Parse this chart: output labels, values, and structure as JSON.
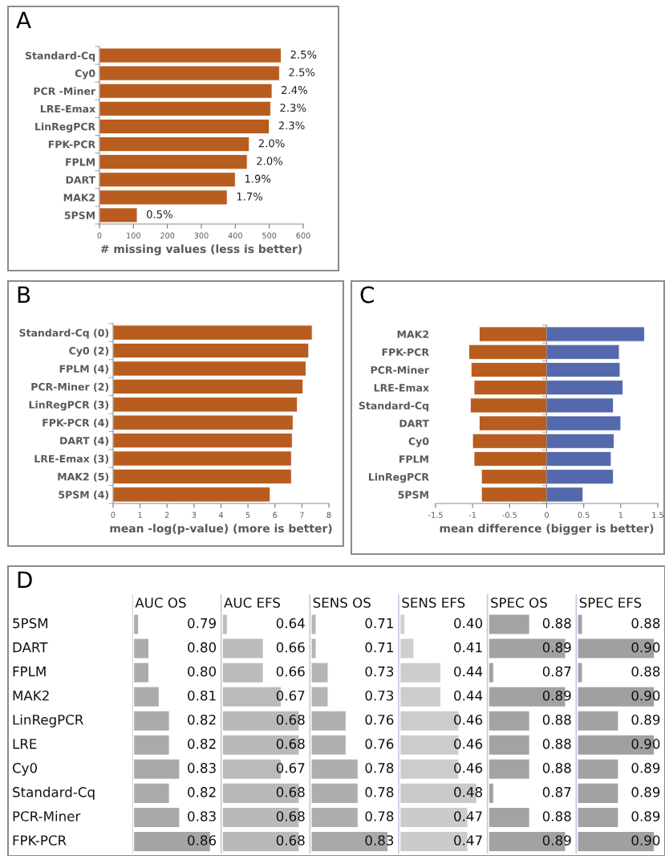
{
  "chart_data": [
    {
      "type": "bar",
      "title": "A",
      "orientation": "horizontal",
      "xlabel": "# missing values (less is better)",
      "categories": [
        "Standard-Cq",
        "Cy0",
        "PCR -Miner",
        "LRE-Emax",
        "LinRegPCR",
        "FPK-PCR",
        "FPLM",
        "DART",
        "MAK2",
        "5PSM"
      ],
      "values": [
        535,
        530,
        508,
        504,
        500,
        441,
        435,
        400,
        376,
        111
      ],
      "color": "#b85c20",
      "annotations": [
        {
          "text": "2.5%",
          "x": 535,
          "y": "Standard-Cq"
        },
        {
          "text": "2.5%",
          "x": 530,
          "y": "Cy0"
        },
        {
          "text": "2.4%",
          "x": 508,
          "y": "PCR -Miner"
        },
        {
          "text": "2.3%",
          "x": 504,
          "y": "LRE-Emax"
        },
        {
          "text": "2.3%",
          "x": 500,
          "y": "LinRegPCR"
        },
        {
          "text": "2.0%",
          "x": 441,
          "y": "FPK-PCR"
        },
        {
          "text": "2.0%",
          "x": 435,
          "y": "FPLM"
        },
        {
          "text": "1.9%",
          "x": 400,
          "y": "DART"
        },
        {
          "text": "1.7%",
          "x": 376,
          "y": "MAK2"
        },
        {
          "text": "0.5%",
          "x": 111,
          "y": "5PSM"
        }
      ],
      "xlim": [
        0,
        600
      ],
      "xticks": [
        0,
        100,
        200,
        300,
        400,
        500,
        600
      ]
    },
    {
      "type": "bar",
      "title": "B",
      "orientation": "horizontal",
      "xlabel": "mean -log(p-value) (more is better)",
      "categories": [
        "Standard-Cq (0)",
        "Cy0 (2)",
        "FPLM (4)",
        "PCR-Miner (2)",
        "LinRegPCR (3)",
        "FPK-PCR (4)",
        "DART (4)",
        "LRE-Emax (3)",
        "MAK2 (5)",
        "5PSM (4)"
      ],
      "values": [
        7.38,
        7.25,
        7.15,
        7.04,
        6.83,
        6.67,
        6.64,
        6.61,
        6.61,
        5.82
      ],
      "color": "#b85c20",
      "xlim": [
        0,
        8
      ],
      "xticks": [
        0,
        1,
        2,
        3,
        4,
        5,
        6,
        7,
        8
      ]
    },
    {
      "type": "bar",
      "title": "C",
      "orientation": "horizontal",
      "xlabel": "mean difference (bigger is better)",
      "categories": [
        "MAK2",
        "FPK-PCR",
        "PCR-Miner",
        "LRE-Emax",
        "Standard-Cq",
        "DART",
        "Cy0",
        "FPLM",
        "LinRegPCR",
        "5PSM"
      ],
      "stacked": true,
      "series": [
        {
          "color": "#b85c20",
          "values": [
            -0.91,
            -1.05,
            -1.02,
            -0.98,
            -1.03,
            -0.91,
            -1.0,
            -0.98,
            -0.88,
            -0.88
          ]
        },
        {
          "color": "#5469ab",
          "values": [
            1.32,
            0.98,
            0.99,
            1.03,
            0.9,
            1.0,
            0.91,
            0.87,
            0.9,
            0.49
          ]
        }
      ],
      "xlim": [
        -1.5,
        1.5
      ],
      "xticks": [
        -1.5,
        -1,
        -0.5,
        0,
        0.5,
        1,
        1.5
      ]
    },
    {
      "type": "heatmap",
      "title": "D",
      "categories": [
        "AUC OS",
        "AUC EFS",
        "SENS OS",
        "SENS EFS",
        "SPEC OS",
        "SPEC EFS"
      ],
      "y_categories": [
        "5PSM",
        "DART",
        "FPLM",
        "MAK2",
        "LinRegPCR",
        "LRE",
        "Cy0",
        "Standard-Cq",
        "PCR-Miner",
        "FPK-PCR"
      ],
      "cells": [
        [
          0.79,
          0.64,
          0.71,
          0.4,
          0.88,
          0.88
        ],
        [
          0.8,
          0.66,
          0.71,
          0.41,
          0.89,
          0.9
        ],
        [
          0.8,
          0.66,
          0.73,
          0.44,
          0.87,
          0.88
        ],
        [
          0.81,
          0.67,
          0.73,
          0.44,
          0.89,
          0.9
        ],
        [
          0.82,
          0.68,
          0.76,
          0.46,
          0.88,
          0.89
        ],
        [
          0.82,
          0.68,
          0.76,
          0.46,
          0.88,
          0.9
        ],
        [
          0.83,
          0.67,
          0.78,
          0.46,
          0.88,
          0.89
        ],
        [
          0.82,
          0.68,
          0.78,
          0.48,
          0.87,
          0.89
        ],
        [
          0.83,
          0.68,
          0.78,
          0.47,
          0.88,
          0.89
        ],
        [
          0.86,
          0.68,
          0.83,
          0.47,
          0.89,
          0.9
        ]
      ],
      "cell_labels": [
        [
          "0.79",
          "0.64",
          "0.71",
          "0.40",
          "0.88",
          "0.88"
        ],
        [
          "0.80",
          "0.66",
          "0.71",
          "0.41",
          "0.89",
          "0.90"
        ],
        [
          "0.80",
          "0.66",
          "0.73",
          "0.44",
          "0.87",
          "0.88"
        ],
        [
          "0.81",
          "0.67",
          "0.73",
          "0.44",
          "0.89",
          "0.90"
        ],
        [
          "0.82",
          "0.68",
          "0.76",
          "0.46",
          "0.88",
          "0.89"
        ],
        [
          "0.82",
          "0.68",
          "0.76",
          "0.46",
          "0.88",
          "0.90"
        ],
        [
          "0.83",
          "0.67",
          "0.78",
          "0.46",
          "0.88",
          "0.89"
        ],
        [
          "0.82",
          "0.68",
          "0.78",
          "0.48",
          "0.87",
          "0.89"
        ],
        [
          "0.83",
          "0.68",
          "0.78",
          "0.47",
          "0.88",
          "0.89"
        ],
        [
          "0.86",
          "0.68",
          "0.83",
          "0.47",
          "0.89",
          "0.90"
        ]
      ]
    }
  ]
}
